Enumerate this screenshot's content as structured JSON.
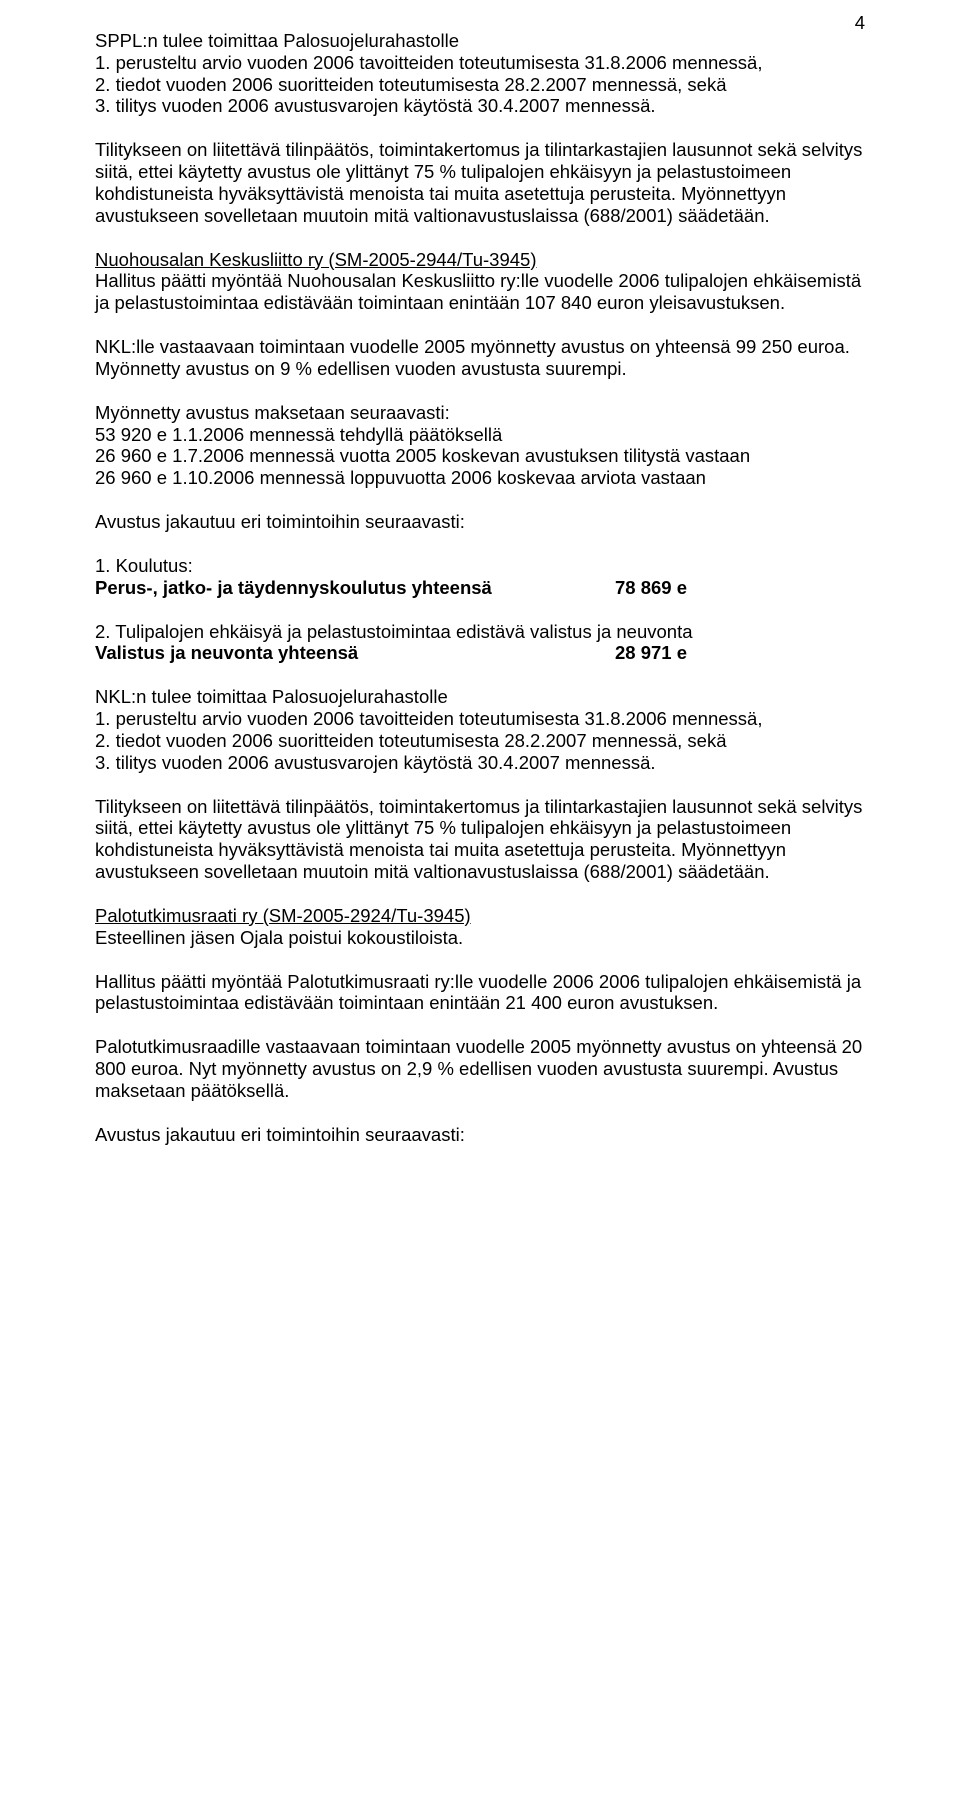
{
  "page_number": "4",
  "p1_l1": "SPPL:n tulee toimittaa Palosuojelurahastolle",
  "p1_l2": "1. perusteltu arvio vuoden 2006 tavoitteiden toteutumisesta 31.8.2006 mennessä,",
  "p1_l3": "2. tiedot vuoden 2006 suoritteiden toteutumisesta 28.2.2007 mennessä, sekä",
  "p1_l4": "3. tilitys vuoden 2006 avustusvarojen käytöstä 30.4.2007 mennessä.",
  "p2": "Tilitykseen on liitettävä tilinpäätös, toimintakertomus ja tilintarkastajien lausunnot sekä selvitys siitä, ettei käytetty avustus ole ylittänyt 75 % tulipalojen ehkäisyyn ja pelastustoimeen kohdistuneista hyväksyttävistä menoista tai muita asetettuja perusteita. Myönnettyyn avustukseen sovelletaan muutoin mitä valtionavustuslaissa (688/2001) säädetään.",
  "p3_title": "Nuohousalan Keskusliitto ry (SM-2005-2944/Tu-3945)",
  "p3_body": "Hallitus päätti myöntää Nuohousalan Keskusliitto ry:lle vuodelle 2006 tulipalojen ehkäisemistä ja pelastustoimintaa edistävään toimintaan enintään 107 840 euron yleisavustuksen.",
  "p4": "NKL:lle vastaavaan toimintaan vuodelle 2005 myönnetty avustus on yhteensä 99 250 euroa. Myönnetty avustus on 9 % edellisen vuoden avustusta suurempi.",
  "p5_l1": "Myönnetty avustus maksetaan seuraavasti:",
  "p5_l2": "53 920 e 1.1.2006 mennessä tehdyllä päätöksellä",
  "p5_l3": "26 960 e 1.7.2006 mennessä vuotta 2005 koskevan avustuksen tilitystä vastaan",
  "p5_l4": "26 960 e 1.10.2006 mennessä loppuvuotta 2006 koskevaa arviota vastaan",
  "p6": "Avustus jakautuu eri toimintoihin seuraavasti:",
  "p7_l1": "1. Koulutus:",
  "p7_bold_left": "Perus-, jatko- ja täydennyskoulutus yhteensä",
  "p7_bold_right": "78 869 e",
  "p8_l1": "2. Tulipalojen ehkäisyä ja pelastustoimintaa edistävä valistus ja neuvonta",
  "p8_bold_left": "Valistus ja neuvonta yhteensä",
  "p8_bold_right": "28 971 e",
  "p9_l1": "NKL:n tulee toimittaa Palosuojelurahastolle",
  "p9_l2": "1. perusteltu arvio vuoden 2006 tavoitteiden toteutumisesta 31.8.2006 mennessä,",
  "p9_l3": "2. tiedot vuoden 2006 suoritteiden toteutumisesta 28.2.2007 mennessä, sekä",
  "p9_l4": "3. tilitys vuoden 2006 avustusvarojen käytöstä 30.4.2007 mennessä.",
  "p10": "Tilitykseen on liitettävä tilinpäätös, toimintakertomus ja tilintarkastajien lausunnot sekä selvitys siitä, ettei käytetty avustus ole ylittänyt 75 % tulipalojen ehkäisyyn ja pelastustoimeen kohdistuneista hyväksyttävistä menoista tai muita asetettuja perusteita. Myönnettyyn avustukseen sovelletaan muutoin mitä valtionavustuslaissa (688/2001) säädetään.",
  "p11_title": "Palotutkimusraati ry (SM-2005-2924/Tu-3945)",
  "p11_body": "Esteellinen jäsen Ojala poistui kokoustiloista.",
  "p12": "Hallitus päätti myöntää Palotutkimusraati ry:lle vuodelle 2006 2006 tulipalojen ehkäisemistä ja pelastustoimintaa edistävään toimintaan enintään 21 400 euron avustuksen.",
  "p13": "Palotutkimusraadille vastaavaan toimintaan vuodelle 2005 myönnetty avustus on yhteensä 20 800 euroa. Nyt myönnetty avustus on 2,9 % edellisen vuoden avustusta suurempi. Avustus maksetaan päätöksellä.",
  "p14": "Avustus jakautuu eri toimintoihin seuraavasti:"
}
